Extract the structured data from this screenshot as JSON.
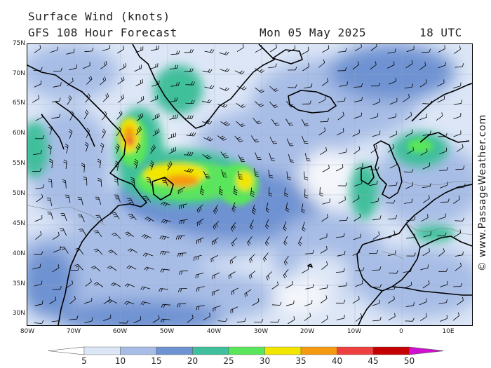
{
  "header": {
    "title_line1": "Surface Wind (knots)",
    "title_line2": "GFS 108 Hour Forecast",
    "date": "Mon 05 May 2025",
    "time": "18 UTC"
  },
  "map": {
    "lat_labels": [
      "75N",
      "70N",
      "65N",
      "60N",
      "55N",
      "50N",
      "45N",
      "40N",
      "35N",
      "30N"
    ],
    "lon_labels": [
      "80W",
      "70W",
      "60W",
      "50W",
      "40W",
      "30W",
      "20W",
      "10W",
      "0",
      "10E"
    ],
    "watermark": "© www.PassageWeather.com"
  },
  "legend": {
    "levels": [
      "5",
      "10",
      "15",
      "20",
      "25",
      "30",
      "35",
      "40",
      "45",
      "50"
    ],
    "colors": [
      "#ffffff",
      "#dce6f6",
      "#a7bde6",
      "#6e92d2",
      "#3fbf9b",
      "#5ae65a",
      "#f2e600",
      "#f59a10",
      "#ee4040",
      "#c40000",
      "#d010d0"
    ]
  }
}
